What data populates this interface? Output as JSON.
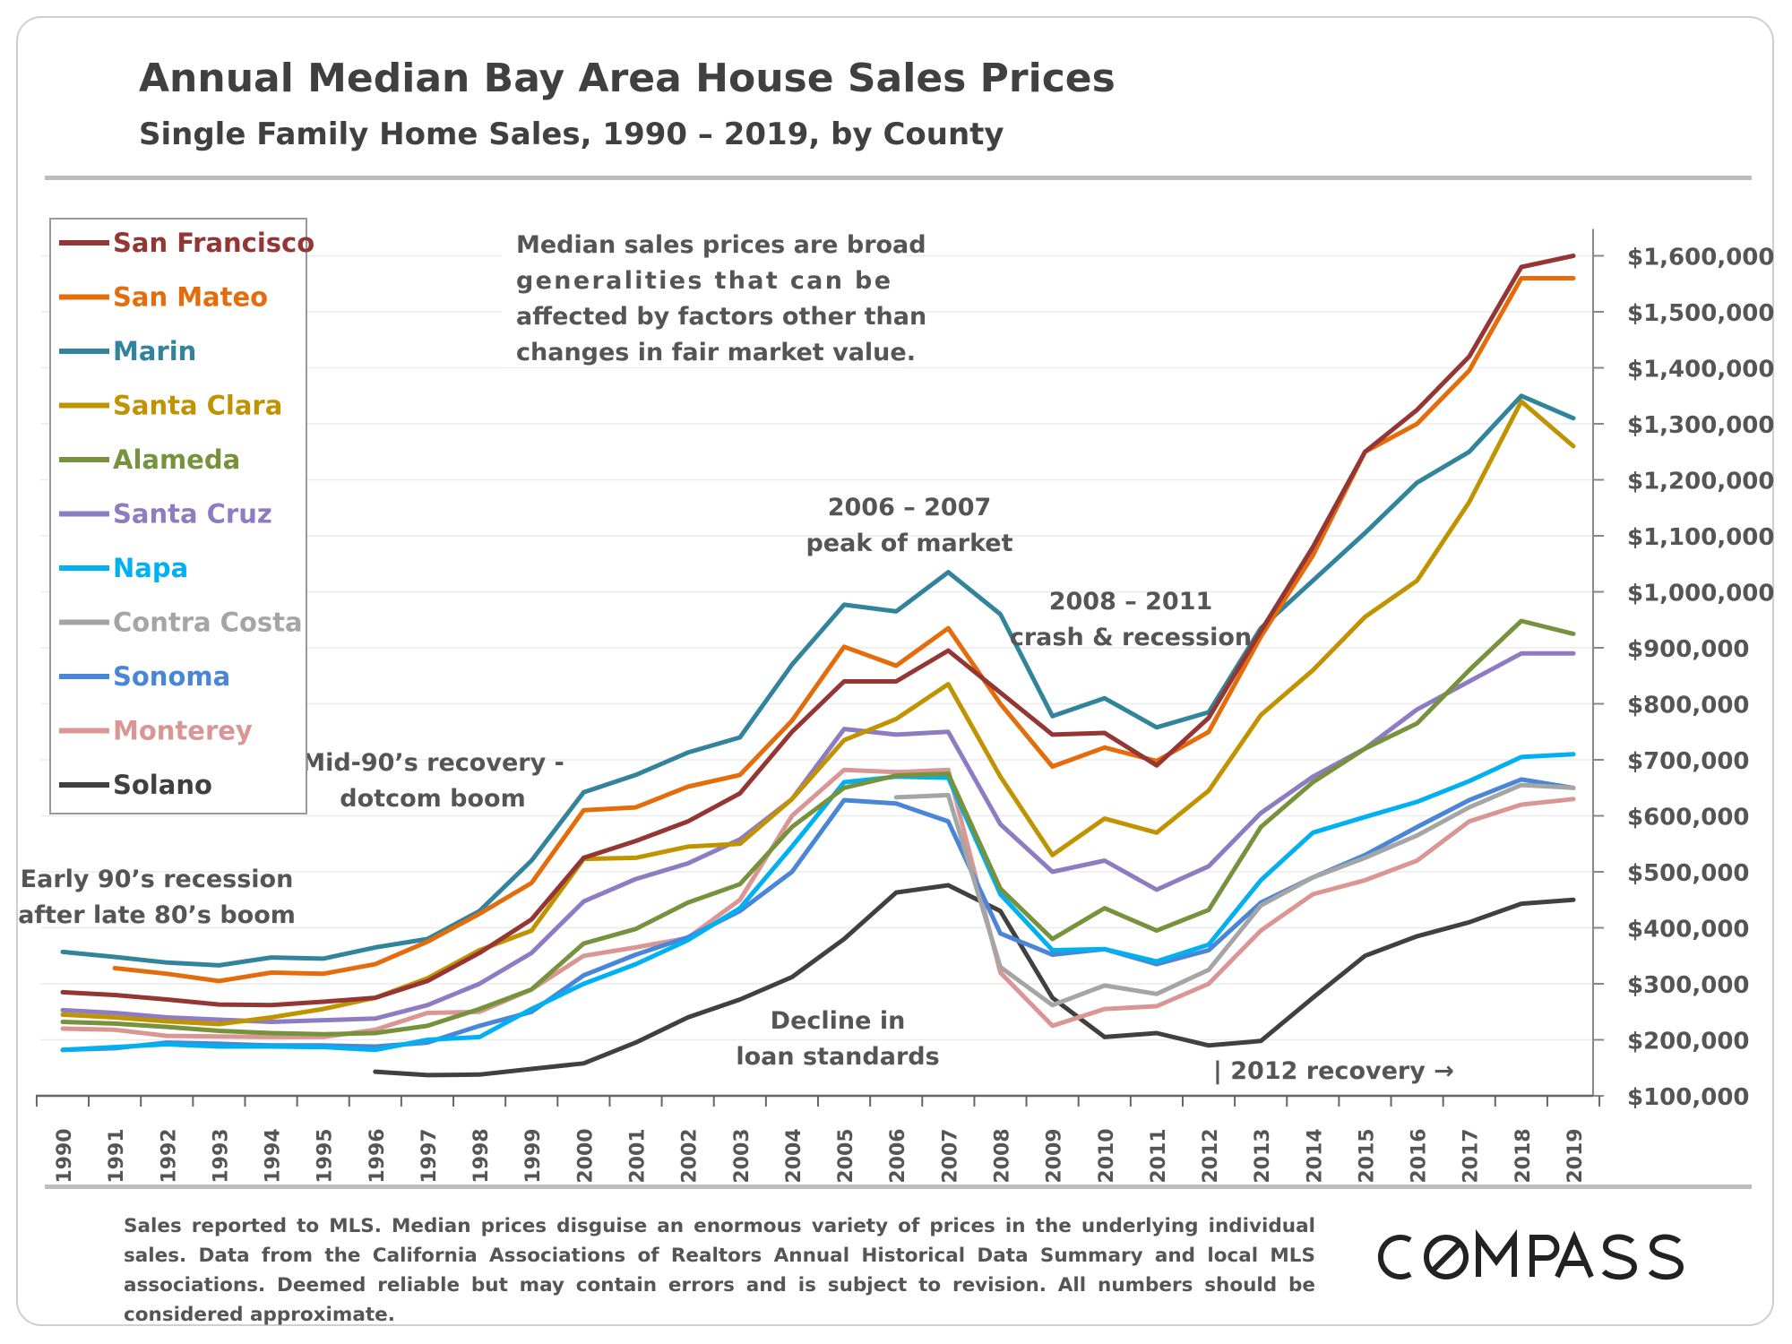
{
  "title": "Annual Median Bay Area House Sales Prices",
  "subtitle": "Single Family Home Sales, 1990 – 2019, by County",
  "footnote": "Sales reported to MLS. Median prices disguise an enormous variety of prices in the underlying individual sales. Data from the California Associations of Realtors Annual Historical Data Summary and local MLS associations. Deemed reliable but may contain errors and is subject to revision. All numbers should be considered approximate.",
  "logo_text": "COMPASS",
  "annotations": {
    "disclaimer": [
      "Median sales prices are broad",
      "generalities that can be",
      "affected by factors other than",
      "changes in fair market value."
    ],
    "peak": [
      "2006 – 2007",
      "peak of market"
    ],
    "crash": [
      "2008 – 2011",
      "crash & recession"
    ],
    "mid90s": [
      "Mid-90’s recovery -",
      "dotcom boom"
    ],
    "early90s": [
      "Early 90’s recession",
      "after late 80’s boom"
    ],
    "loan": [
      "Decline in",
      "loan standards"
    ],
    "recovery": "| 2012 recovery →"
  },
  "chart_data": {
    "type": "line",
    "x": [
      1990,
      1991,
      1992,
      1993,
      1994,
      1995,
      1996,
      1997,
      1998,
      1999,
      2000,
      2001,
      2002,
      2003,
      2004,
      2005,
      2006,
      2007,
      2008,
      2009,
      2010,
      2011,
      2012,
      2013,
      2014,
      2015,
      2016,
      2017,
      2018,
      2019
    ],
    "ylim": [
      100000,
      1650000
    ],
    "yticks": [
      100000,
      200000,
      300000,
      400000,
      500000,
      600000,
      700000,
      800000,
      900000,
      1000000,
      1100000,
      1200000,
      1300000,
      1400000,
      1500000,
      1600000
    ],
    "ytick_labels": [
      "$100,000",
      "$200,000",
      "$300,000",
      "$400,000",
      "$500,000",
      "$600,000",
      "$700,000",
      "$800,000",
      "$900,000",
      "$1,000,000",
      "$1,100,000",
      "$1,200,000",
      "$1,300,000",
      "$1,400,000",
      "$1,500,000",
      "$1,600,000"
    ],
    "yaxis_position": "right",
    "legend_position": "top-left",
    "series": [
      {
        "name": "San Francisco",
        "color": "#943634",
        "values": [
          285000,
          280000,
          272000,
          263000,
          262000,
          268000,
          275000,
          305000,
          355000,
          415000,
          525000,
          555000,
          590000,
          640000,
          750000,
          840000,
          840000,
          895000,
          820000,
          745000,
          748000,
          690000,
          775000,
          930000,
          1080000,
          1250000,
          1325000,
          1420000,
          1580000,
          1600000
        ]
      },
      {
        "name": "San Mateo",
        "color": "#E46C0A",
        "values": [
          null,
          328000,
          318000,
          305000,
          320000,
          318000,
          335000,
          375000,
          425000,
          480000,
          610000,
          615000,
          652000,
          673000,
          770000,
          902000,
          868000,
          935000,
          800000,
          688000,
          722000,
          698000,
          750000,
          920000,
          1065000,
          1250000,
          1300000,
          1395000,
          1560000,
          1560000
        ]
      },
      {
        "name": "Marin",
        "color": "#31849B",
        "values": [
          357000,
          348000,
          338000,
          333000,
          347000,
          345000,
          365000,
          380000,
          430000,
          520000,
          642000,
          673000,
          713000,
          740000,
          870000,
          977000,
          965000,
          1035000,
          960000,
          778000,
          810000,
          758000,
          785000,
          935000,
          1020000,
          1105000,
          1195000,
          1250000,
          1350000,
          1310000
        ]
      },
      {
        "name": "Santa Clara",
        "color": "#C09300",
        "values": [
          245000,
          240000,
          233000,
          228000,
          240000,
          255000,
          275000,
          310000,
          360000,
          395000,
          523000,
          525000,
          545000,
          550000,
          630000,
          735000,
          773000,
          835000,
          670000,
          530000,
          595000,
          570000,
          645000,
          780000,
          860000,
          955000,
          1020000,
          1160000,
          1340000,
          1260000
        ]
      },
      {
        "name": "Alameda",
        "color": "#76923C",
        "values": [
          232000,
          229000,
          223000,
          216000,
          212000,
          210000,
          212000,
          225000,
          255000,
          290000,
          372000,
          398000,
          445000,
          478000,
          580000,
          650000,
          672000,
          675000,
          470000,
          380000,
          435000,
          395000,
          432000,
          580000,
          660000,
          720000,
          765000,
          860000,
          948000,
          925000
        ]
      },
      {
        "name": "Santa Cruz",
        "color": "#8E7CC3",
        "values": [
          253000,
          248000,
          240000,
          236000,
          232000,
          235000,
          238000,
          262000,
          300000,
          355000,
          447000,
          487000,
          515000,
          558000,
          630000,
          755000,
          745000,
          750000,
          585000,
          500000,
          520000,
          468000,
          510000,
          605000,
          670000,
          720000,
          790000,
          840000,
          890000,
          890000
        ]
      },
      {
        "name": "Napa",
        "color": "#00B0F0",
        "values": [
          182000,
          187000,
          192000,
          188000,
          188000,
          187000,
          182000,
          200000,
          205000,
          255000,
          300000,
          335000,
          378000,
          435000,
          545000,
          660000,
          670000,
          668000,
          460000,
          360000,
          362000,
          340000,
          370000,
          485000,
          570000,
          598000,
          625000,
          662000,
          705000,
          710000
        ]
      },
      {
        "name": "Contra Costa",
        "color": "#A5A5A5",
        "values": [
          null,
          null,
          null,
          null,
          null,
          null,
          null,
          null,
          null,
          null,
          null,
          null,
          null,
          null,
          null,
          null,
          633000,
          637000,
          330000,
          262000,
          297000,
          282000,
          325000,
          440000,
          490000,
          525000,
          565000,
          615000,
          655000,
          650000
        ]
      },
      {
        "name": "Sonoma",
        "color": "#4A86D8",
        "values": [
          182000,
          185000,
          195000,
          193000,
          190000,
          190000,
          188000,
          195000,
          225000,
          250000,
          315000,
          352000,
          383000,
          430000,
          500000,
          628000,
          622000,
          590000,
          390000,
          352000,
          362000,
          335000,
          360000,
          445000,
          490000,
          530000,
          580000,
          628000,
          665000,
          650000
        ]
      },
      {
        "name": "Monterey",
        "color": "#DA9694",
        "values": [
          220000,
          218000,
          207000,
          206000,
          205000,
          205000,
          218000,
          248000,
          250000,
          290000,
          350000,
          365000,
          382000,
          450000,
          600000,
          682000,
          678000,
          682000,
          320000,
          225000,
          255000,
          260000,
          300000,
          395000,
          460000,
          485000,
          520000,
          590000,
          620000,
          630000
        ]
      },
      {
        "name": "Solano",
        "color": "#404040",
        "values": [
          null,
          null,
          null,
          null,
          null,
          null,
          143000,
          137000,
          138000,
          148000,
          158000,
          195000,
          240000,
          272000,
          312000,
          380000,
          463000,
          476000,
          430000,
          275000,
          205000,
          212000,
          190000,
          198000,
          275000,
          350000,
          385000,
          410000,
          443000,
          450000
        ]
      }
    ]
  }
}
